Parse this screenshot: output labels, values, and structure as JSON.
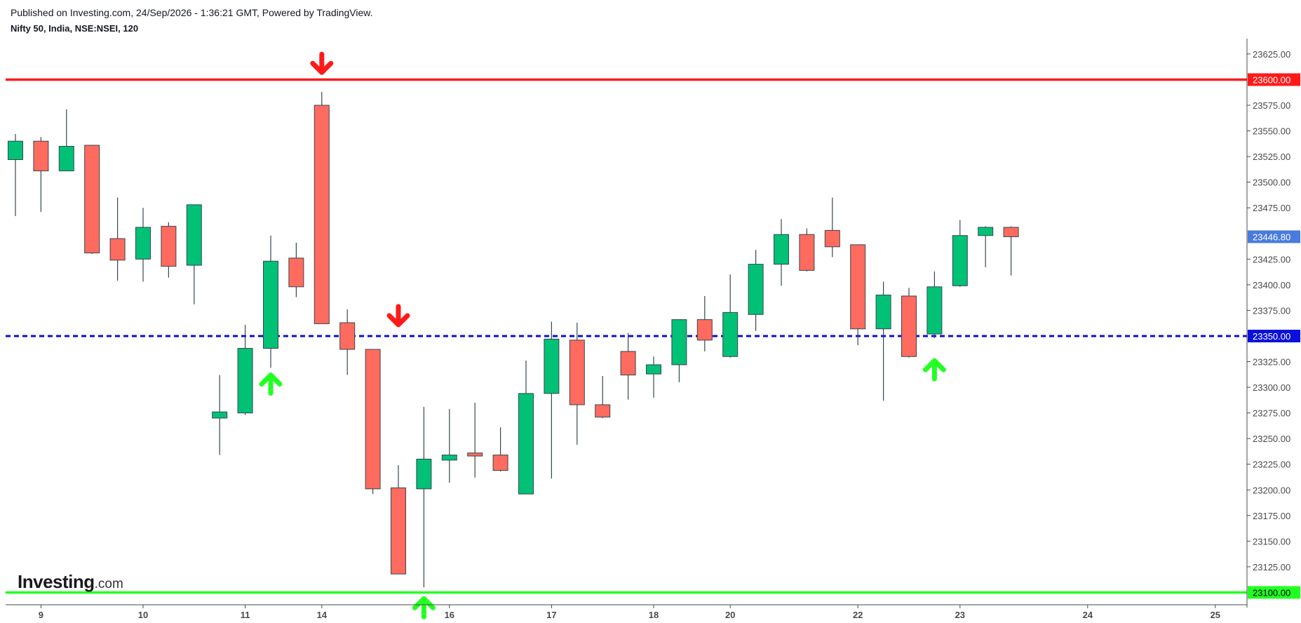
{
  "header": {
    "published": "Published on Investing.com, 24/Sep/2026 - 1:36:21 GMT, Powered by TradingView.",
    "symbol": "Nifty 50, India, NSE:NSEI, 120"
  },
  "branding": {
    "name": "Investing",
    "suffix": ".com"
  },
  "colors": {
    "up": "#00c176",
    "down": "#ff6b5e",
    "wick": "#37474f",
    "border": "#37474f",
    "resistance": "#ff1a1a",
    "support": "#22ff22",
    "pivot": "#0a10d8",
    "last_price_bg": "#4a7bdc",
    "arrow_up": "#22ff22",
    "arrow_down": "#ff1a1a"
  },
  "chart_data": {
    "type": "candlestick",
    "ylim": [
      23088,
      23640
    ],
    "y_ticks": [
      "23625.00",
      "23575.00",
      "23550.00",
      "23525.00",
      "23500.00",
      "23475.00",
      "23425.00",
      "23400.00",
      "23375.00",
      "23325.00",
      "23300.00",
      "23275.00",
      "23250.00",
      "23225.00",
      "23200.00",
      "23175.00",
      "23150.00",
      "23125.00"
    ],
    "x_ticks": [
      {
        "label": "9",
        "index": 1
      },
      {
        "label": "10",
        "index": 5
      },
      {
        "label": "11",
        "index": 9
      },
      {
        "label": "14",
        "index": 12
      },
      {
        "label": "16",
        "index": 17
      },
      {
        "label": "17",
        "index": 21
      },
      {
        "label": "18",
        "index": 25
      },
      {
        "label": "20",
        "index": 28
      },
      {
        "label": "22",
        "index": 33
      },
      {
        "label": "23",
        "index": 37
      },
      {
        "label": "24",
        "index": 42
      },
      {
        "label": "25",
        "index": 47
      }
    ],
    "candles": [
      {
        "o": 23522,
        "h": 23547,
        "l": 23467,
        "c": 23540
      },
      {
        "o": 23540,
        "h": 23544,
        "l": 23471,
        "c": 23511
      },
      {
        "o": 23511,
        "h": 23571,
        "l": 23511,
        "c": 23535
      },
      {
        "o": 23536,
        "h": 23536,
        "l": 23430,
        "c": 23431
      },
      {
        "o": 23445,
        "h": 23485,
        "l": 23404,
        "c": 23424
      },
      {
        "o": 23425,
        "h": 23475,
        "l": 23403,
        "c": 23456
      },
      {
        "o": 23457,
        "h": 23461,
        "l": 23407,
        "c": 23418
      },
      {
        "o": 23419,
        "h": 23478,
        "l": 23381,
        "c": 23478
      },
      {
        "o": 23270,
        "h": 23312,
        "l": 23234,
        "c": 23276
      },
      {
        "o": 23275,
        "h": 23361,
        "l": 23273,
        "c": 23338
      },
      {
        "o": 23338,
        "h": 23448,
        "l": 23319,
        "c": 23423
      },
      {
        "o": 23426,
        "h": 23441,
        "l": 23388,
        "c": 23398
      },
      {
        "o": 23575,
        "h": 23588,
        "l": 23362,
        "c": 23362
      },
      {
        "o": 23363,
        "h": 23376,
        "l": 23312,
        "c": 23337
      },
      {
        "o": 23337,
        "h": 23337,
        "l": 23196,
        "c": 23201
      },
      {
        "o": 23202,
        "h": 23224,
        "l": 23118,
        "c": 23118
      },
      {
        "o": 23201,
        "h": 23281,
        "l": 23105,
        "c": 23230
      },
      {
        "o": 23229,
        "h": 23279,
        "l": 23207,
        "c": 23234
      },
      {
        "o": 23236,
        "h": 23285,
        "l": 23212,
        "c": 23233
      },
      {
        "o": 23234,
        "h": 23261,
        "l": 23218,
        "c": 23219
      },
      {
        "o": 23196,
        "h": 23326,
        "l": 23196,
        "c": 23294
      },
      {
        "o": 23294,
        "h": 23364,
        "l": 23211,
        "c": 23347
      },
      {
        "o": 23346,
        "h": 23363,
        "l": 23244,
        "c": 23283
      },
      {
        "o": 23283,
        "h": 23311,
        "l": 23270,
        "c": 23271
      },
      {
        "o": 23335,
        "h": 23353,
        "l": 23288,
        "c": 23312
      },
      {
        "o": 23313,
        "h": 23330,
        "l": 23290,
        "c": 23322
      },
      {
        "o": 23322,
        "h": 23366,
        "l": 23305,
        "c": 23366
      },
      {
        "o": 23366,
        "h": 23389,
        "l": 23335,
        "c": 23346
      },
      {
        "o": 23330,
        "h": 23410,
        "l": 23329,
        "c": 23373
      },
      {
        "o": 23371,
        "h": 23434,
        "l": 23355,
        "c": 23420
      },
      {
        "o": 23420,
        "h": 23464,
        "l": 23399,
        "c": 23449
      },
      {
        "o": 23449,
        "h": 23455,
        "l": 23413,
        "c": 23414
      },
      {
        "o": 23453,
        "h": 23485,
        "l": 23427,
        "c": 23437
      },
      {
        "o": 23439,
        "h": 23439,
        "l": 23341,
        "c": 23357
      },
      {
        "o": 23357,
        "h": 23403,
        "l": 23287,
        "c": 23390
      },
      {
        "o": 23389,
        "h": 23397,
        "l": 23329,
        "c": 23330
      },
      {
        "o": 23352,
        "h": 23413,
        "l": 23348,
        "c": 23398
      },
      {
        "o": 23399,
        "h": 23463,
        "l": 23398,
        "c": 23448
      },
      {
        "o": 23448,
        "h": 23457,
        "l": 23417,
        "c": 23456
      },
      {
        "o": 23456,
        "h": 23457,
        "l": 23409,
        "c": 23446.8
      }
    ],
    "lines": [
      {
        "price": 23600,
        "label": "23600.00",
        "style": "solid",
        "color_key": "resistance"
      },
      {
        "price": 23350,
        "label": "23350.00",
        "style": "dashed",
        "color_key": "pivot"
      },
      {
        "price": 23100,
        "label": "23100.00",
        "style": "solid",
        "color_key": "support"
      }
    ],
    "last_price": {
      "price": 23446.8,
      "label": "23446.80"
    },
    "arrows": [
      {
        "type": "down",
        "index": 12,
        "price": 23607
      },
      {
        "type": "down",
        "index": 15,
        "price": 23361
      },
      {
        "type": "up",
        "index": 10,
        "price": 23312
      },
      {
        "type": "up",
        "index": 16,
        "price": 23094
      },
      {
        "type": "up",
        "index": 36,
        "price": 23326
      }
    ]
  }
}
